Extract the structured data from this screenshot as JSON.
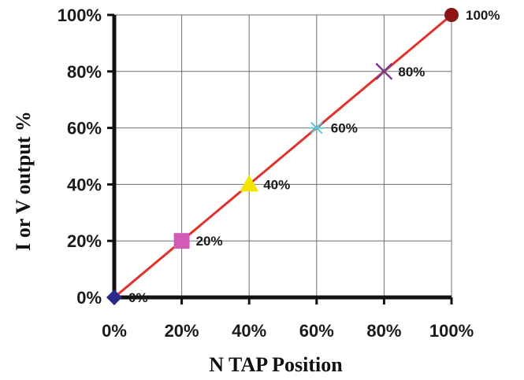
{
  "chart_data": {
    "type": "line",
    "xlabel": "N TAP Position",
    "ylabel": "I  or V output %",
    "x_tick_labels": [
      "0%",
      "20%",
      "40%",
      "60%",
      "80%",
      "100%"
    ],
    "y_tick_labels": [
      "0%",
      "20%",
      "40%",
      "60%",
      "80%",
      "100%"
    ],
    "xlim": [
      0,
      100
    ],
    "ylim": [
      0,
      100
    ],
    "grid": true,
    "line_color": "#e0312b",
    "series": [
      {
        "x": [
          0,
          20,
          40,
          60,
          80,
          100
        ],
        "y": [
          0,
          20,
          40,
          60,
          80,
          100
        ],
        "labels": [
          "0%",
          "20%",
          "40%",
          "60%",
          "80%",
          "100%"
        ],
        "markers": [
          {
            "shape": "diamond",
            "color": "#2a2a8c"
          },
          {
            "shape": "square",
            "color": "#d35bb8"
          },
          {
            "shape": "triangle",
            "color": "#f2e600"
          },
          {
            "shape": "star",
            "color": "#5cc7d6"
          },
          {
            "shape": "cross",
            "color": "#7a3a8a"
          },
          {
            "shape": "circle",
            "color": "#8c1414"
          }
        ]
      }
    ]
  }
}
